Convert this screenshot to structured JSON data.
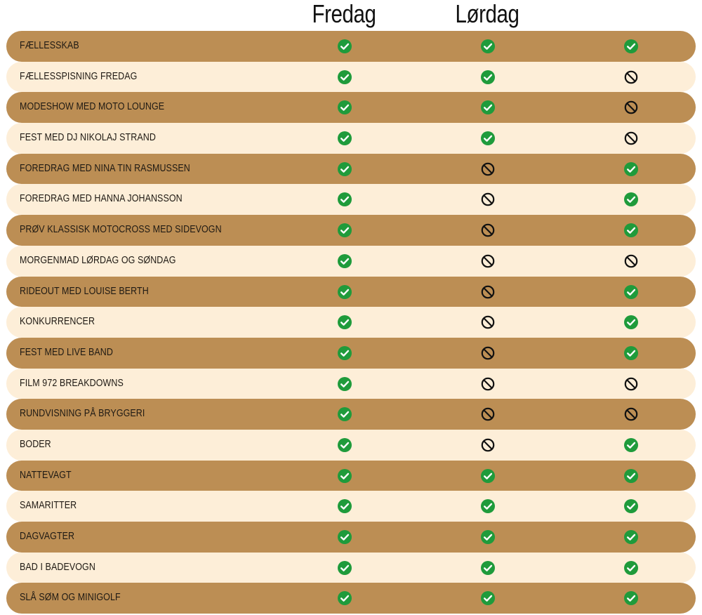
{
  "header": {
    "columns": [
      "",
      "Fredag",
      "Lørdag"
    ]
  },
  "colors": {
    "row_dark": "#bc8e54",
    "row_light": "#fdeed8",
    "check": "#1f9b3b",
    "no": "#111111"
  },
  "rows": [
    {
      "label": "FÆLLESSKAB",
      "values": [
        "check",
        "check",
        "check"
      ]
    },
    {
      "label": "FÆLLESSPISNING FREDAG",
      "values": [
        "check",
        "check",
        "no"
      ]
    },
    {
      "label": "MODESHOW MED MOTO LOUNGE",
      "values": [
        "check",
        "check",
        "no"
      ]
    },
    {
      "label": "FEST MED DJ NIKOLAJ STRAND",
      "values": [
        "check",
        "check",
        "no"
      ]
    },
    {
      "label": "FOREDRAG MED NINA TIN RASMUSSEN",
      "values": [
        "check",
        "no",
        "check"
      ]
    },
    {
      "label": "FOREDRAG MED HANNA JOHANSSON",
      "values": [
        "check",
        "no",
        "check"
      ]
    },
    {
      "label": "PRØV KLASSISK MOTOCROSS MED SIDEVOGN",
      "values": [
        "check",
        "no",
        "check"
      ]
    },
    {
      "label": "MORGENMAD LØRDAG OG SØNDAG",
      "values": [
        "check",
        "no",
        "no"
      ]
    },
    {
      "label": "RIDEOUT MED LOUISE BERTH",
      "values": [
        "check",
        "no",
        "check"
      ]
    },
    {
      "label": "KONKURRENCER",
      "values": [
        "check",
        "no",
        "check"
      ]
    },
    {
      "label": "FEST MED LIVE BAND",
      "values": [
        "check",
        "no",
        "check"
      ]
    },
    {
      "label": "FILM 972 BREAKDOWNS",
      "values": [
        "check",
        "no",
        "no"
      ]
    },
    {
      "label": "RUNDVISNING PÅ BRYGGERI",
      "values": [
        "check",
        "no",
        "no"
      ]
    },
    {
      "label": "BODER",
      "values": [
        "check",
        "no",
        "check"
      ]
    },
    {
      "label": "NATTEVAGT",
      "values": [
        "check",
        "check",
        "check"
      ]
    },
    {
      "label": "SAMARITTER",
      "values": [
        "check",
        "check",
        "check"
      ]
    },
    {
      "label": "DAGVAGTER",
      "values": [
        "check",
        "check",
        "check"
      ]
    },
    {
      "label": "BAD I BADEVOGN",
      "values": [
        "check",
        "check",
        "check"
      ]
    },
    {
      "label": "SLÅ SØM OG MINIGOLF",
      "values": [
        "check",
        "check",
        "check"
      ]
    }
  ],
  "icons": {
    "check": "check-circle-icon",
    "no": "prohibited-icon"
  }
}
